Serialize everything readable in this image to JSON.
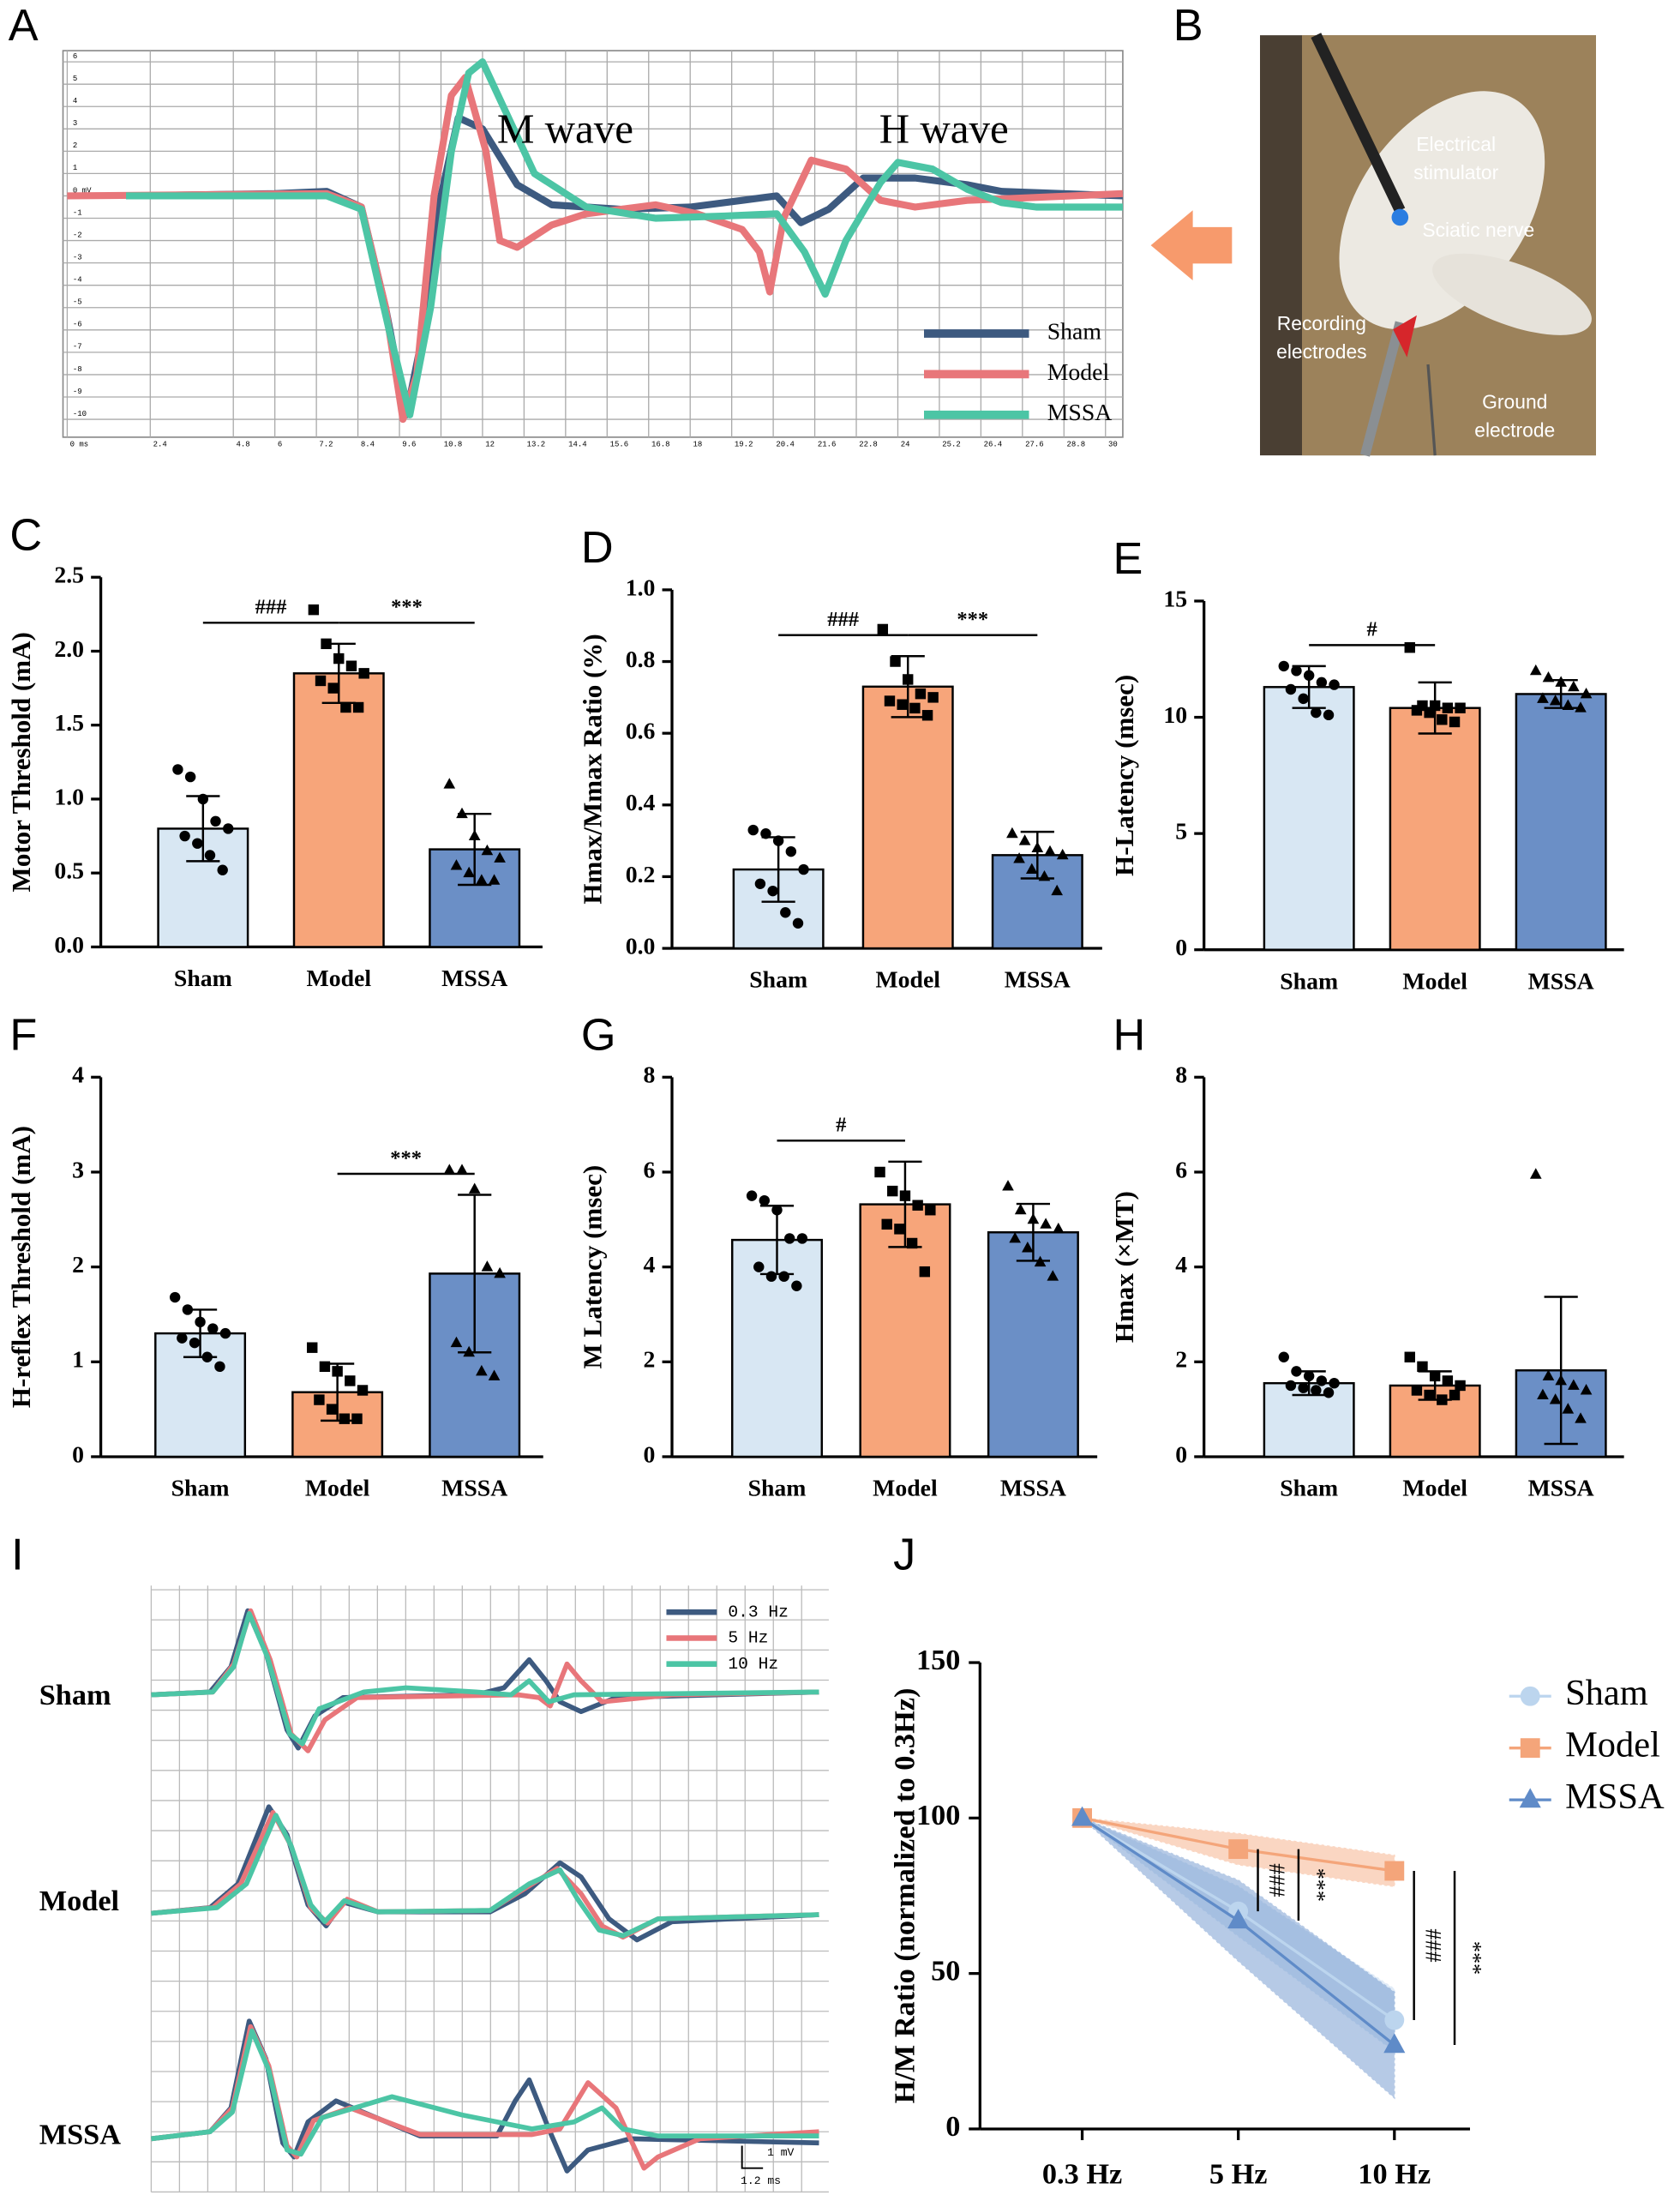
{
  "chart_data": [
    {
      "type": "line",
      "label": "A",
      "xlim": [
        0,
        30.5
      ],
      "ylim": [
        -10.8,
        6.5
      ],
      "grid": true,
      "legend": "lower right",
      "xticks": [
        {
          "value": 0,
          "label": "0 ms"
        },
        2.4,
        4.8,
        6,
        7.2,
        8.4,
        9.6,
        10.8,
        12,
        13.2,
        14.4,
        15.6,
        16.8,
        18,
        19.2,
        20.4,
        21.6,
        22.8,
        24,
        25.2,
        26.4,
        27.6,
        28.8,
        30
      ],
      "yticks": [
        6,
        5,
        4,
        3,
        2,
        1,
        {
          "value": 0,
          "label": "0 mV"
        },
        -1,
        -2,
        -3,
        -4,
        -5,
        -6,
        -7,
        -8,
        -9,
        -10
      ],
      "annotations": [
        "M wave",
        "H wave"
      ],
      "series": [
        {
          "name": "Sham",
          "color": "#3d5a80",
          "x": [
            1.7,
            6,
            7.5,
            8.5,
            9.2,
            9.8,
            10.3,
            10.8,
            11.3,
            12,
            13,
            14,
            16,
            18,
            19.5,
            20.5,
            21.2,
            22,
            23,
            24.5,
            26,
            27,
            30.5
          ],
          "values": [
            0,
            0.1,
            0.2,
            -0.5,
            -5,
            -9.8,
            -6,
            0,
            3.5,
            3,
            0.5,
            -0.4,
            -0.6,
            -0.5,
            -0.2,
            0,
            -1.2,
            -0.6,
            0.8,
            0.8,
            0.5,
            0.2,
            0
          ]
        },
        {
          "name": "Model",
          "color": "#e8767a",
          "x": [
            0,
            7.5,
            8.5,
            9.2,
            9.7,
            10.1,
            10.6,
            11.1,
            11.5,
            12.1,
            12.5,
            13,
            14,
            15,
            17,
            18.2,
            19.5,
            20,
            20.3,
            20.7,
            21.5,
            22.5,
            23.5,
            24.5,
            26,
            30.5
          ],
          "values": [
            0,
            0.1,
            -0.5,
            -5,
            -10,
            -8,
            0,
            4.5,
            5.3,
            2,
            -2,
            -2.3,
            -1.3,
            -0.8,
            -0.4,
            -0.8,
            -1.5,
            -2.5,
            -4.3,
            -1,
            1.6,
            1.2,
            -0.2,
            -0.5,
            -0.2,
            0.1
          ]
        },
        {
          "name": "MSSA",
          "color": "#4cc5a5",
          "x": [
            1.7,
            7.5,
            8.5,
            9.3,
            9.9,
            10.5,
            11.1,
            11.6,
            12,
            12.6,
            13.5,
            15,
            17,
            19,
            20.5,
            21.3,
            21.9,
            22.5,
            23.5,
            24,
            25,
            26,
            27,
            28,
            30.5
          ],
          "values": [
            0,
            0,
            -0.6,
            -6,
            -9.8,
            -5,
            2,
            5.5,
            6,
            4,
            1,
            -0.5,
            -1,
            -0.9,
            -0.8,
            -2.5,
            -4.4,
            -2,
            0.6,
            1.5,
            1.2,
            0.3,
            -0.3,
            -0.5,
            -0.5
          ]
        }
      ]
    },
    {
      "type": "bar",
      "label": "C",
      "ylabel": "Motor Threshold (mA)",
      "categories": [
        "Sham",
        "Model",
        "MSSA"
      ],
      "colors": [
        "#d8e7f3",
        "#f7a57a",
        "#6b8fc6"
      ],
      "markers": [
        "circle",
        "square",
        "triangle"
      ],
      "values": [
        0.8,
        1.85,
        0.66
      ],
      "errors": [
        0.22,
        0.2,
        0.24
      ],
      "points": [
        [
          1.2,
          1.15,
          1.0,
          0.85,
          0.8,
          0.75,
          0.7,
          0.62,
          0.52
        ],
        [
          2.28,
          2.05,
          1.95,
          1.9,
          1.85,
          1.8,
          1.75,
          1.62,
          1.62
        ],
        [
          1.1,
          0.9,
          0.75,
          0.65,
          0.6,
          0.55,
          0.5,
          0.45,
          0.45
        ]
      ],
      "ylim": [
        0,
        2.5
      ],
      "yticks": [
        {
          "value": 0,
          "label": "0.0"
        },
        0.5,
        {
          "value": 1,
          "label": "1.0"
        },
        1.5,
        {
          "value": 2,
          "label": "2.0"
        },
        2.5
      ],
      "significance": [
        {
          "text": "###",
          "categories": [
            "Sham",
            "Model"
          ]
        },
        {
          "text": "***",
          "categories": [
            "Model",
            "MSSA"
          ]
        }
      ]
    },
    {
      "type": "bar",
      "label": "D",
      "ylabel": "Hmax/Mmax Ratio (%)",
      "categories": [
        "Sham",
        "Model",
        "MSSA"
      ],
      "colors": [
        "#d8e7f3",
        "#f7a57a",
        "#6b8fc6"
      ],
      "markers": [
        "circle",
        "square",
        "triangle"
      ],
      "values": [
        0.22,
        0.73,
        0.26
      ],
      "errors": [
        0.09,
        0.085,
        0.065
      ],
      "points": [
        [
          0.33,
          0.32,
          0.3,
          0.27,
          0.22,
          0.18,
          0.16,
          0.1,
          0.07
        ],
        [
          0.89,
          0.8,
          0.75,
          0.71,
          0.7,
          0.69,
          0.68,
          0.67,
          0.65
        ],
        [
          0.32,
          0.3,
          0.28,
          0.27,
          0.26,
          0.25,
          0.22,
          0.2,
          0.16
        ]
      ],
      "ylim": [
        0,
        1
      ],
      "yticks": [
        {
          "value": 0,
          "label": "0.0"
        },
        0.2,
        0.4,
        0.6,
        0.8,
        {
          "value": 1,
          "label": "1.0"
        }
      ],
      "significance": [
        {
          "text": "###",
          "categories": [
            "Sham",
            "Model"
          ]
        },
        {
          "text": "***",
          "categories": [
            "Model",
            "MSSA"
          ]
        }
      ]
    },
    {
      "type": "bar",
      "label": "E",
      "ylabel": "H-Latency (msec)",
      "categories": [
        "Sham",
        "Model",
        "MSSA"
      ],
      "colors": [
        "#d8e7f3",
        "#f7a57a",
        "#6b8fc6"
      ],
      "markers": [
        "circle",
        "square",
        "triangle"
      ],
      "values": [
        11.3,
        10.4,
        11.0
      ],
      "errors": [
        0.9,
        1.1,
        0.6
      ],
      "points": [
        [
          12.2,
          12.0,
          11.8,
          11.5,
          11.4,
          11.2,
          10.8,
          10.2,
          10.1
        ],
        [
          13.0,
          10.5,
          10.5,
          10.4,
          10.4,
          10.3,
          10.2,
          9.9,
          9.8
        ],
        [
          12.0,
          11.7,
          11.5,
          11.3,
          11.0,
          10.8,
          10.7,
          10.5,
          10.4
        ]
      ],
      "ylim": [
        0,
        15
      ],
      "yticks": [
        0,
        5,
        10,
        15
      ],
      "significance": [
        {
          "text": "#",
          "categories": [
            "Sham",
            "Model"
          ]
        }
      ]
    },
    {
      "type": "bar",
      "label": "F",
      "ylabel": "H-reflex Threshold (mA)",
      "categories": [
        "Sham",
        "Model",
        "MSSA"
      ],
      "colors": [
        "#d8e7f3",
        "#f7a57a",
        "#6b8fc6"
      ],
      "markers": [
        "circle",
        "square",
        "triangle"
      ],
      "values": [
        1.3,
        0.68,
        1.93
      ],
      "errors": [
        0.25,
        0.3,
        0.83
      ],
      "points": [
        [
          1.68,
          1.55,
          1.42,
          1.35,
          1.3,
          1.25,
          1.2,
          1.05,
          0.95
        ],
        [
          1.15,
          0.95,
          0.9,
          0.8,
          0.7,
          0.6,
          0.5,
          0.4,
          0.4
        ],
        [
          3.02,
          3.02,
          2.82,
          2.0,
          1.93,
          1.2,
          1.1,
          0.9,
          0.85
        ]
      ],
      "ylim": [
        0,
        4
      ],
      "yticks": [
        0,
        1,
        2,
        3,
        4
      ],
      "significance": [
        {
          "text": "***",
          "categories": [
            "Model",
            "MSSA"
          ]
        }
      ]
    },
    {
      "type": "bar",
      "label": "G",
      "ylabel": "M Latency (msec)",
      "categories": [
        "Sham",
        "Model",
        "MSSA"
      ],
      "colors": [
        "#d8e7f3",
        "#f7a57a",
        "#6b8fc6"
      ],
      "markers": [
        "circle",
        "square",
        "triangle"
      ],
      "values": [
        4.57,
        5.32,
        4.73
      ],
      "errors": [
        0.72,
        0.9,
        0.6
      ],
      "points": [
        [
          5.5,
          5.4,
          5.2,
          4.6,
          4.6,
          4.0,
          3.8,
          3.8,
          3.6
        ],
        [
          6.0,
          5.6,
          5.5,
          5.3,
          5.2,
          4.9,
          4.8,
          4.5,
          3.9
        ],
        [
          5.7,
          5.2,
          5.0,
          4.9,
          4.8,
          4.6,
          4.4,
          4.1,
          3.8
        ]
      ],
      "ylim": [
        0,
        8
      ],
      "yticks": [
        0,
        2,
        4,
        6,
        8
      ],
      "significance": [
        {
          "text": "#",
          "categories": [
            "Sham",
            "Model"
          ]
        }
      ]
    },
    {
      "type": "bar",
      "label": "H",
      "ylabel": "Hmax (×MT)",
      "categories": [
        "Sham",
        "Model",
        "MSSA"
      ],
      "colors": [
        "#d8e7f3",
        "#f7a57a",
        "#6b8fc6"
      ],
      "markers": [
        "circle",
        "square",
        "triangle"
      ],
      "values": [
        1.55,
        1.5,
        1.82
      ],
      "errors": [
        0.25,
        0.3,
        1.55
      ],
      "points": [
        [
          2.1,
          1.8,
          1.7,
          1.6,
          1.55,
          1.5,
          1.45,
          1.4,
          1.35
        ],
        [
          2.1,
          1.9,
          1.7,
          1.6,
          1.5,
          1.4,
          1.3,
          1.2,
          1.3
        ],
        [
          5.95,
          1.7,
          1.6,
          1.5,
          1.4,
          1.3,
          1.2,
          1.0,
          0.8
        ]
      ],
      "ylim": [
        0,
        8
      ],
      "yticks": [
        0,
        2,
        4,
        6,
        8
      ],
      "significance": []
    },
    {
      "type": "line",
      "label": "J",
      "ylabel": "H/M Ratio (normalized to 0.3Hz)",
      "categories": [
        "0.3 Hz",
        "5 Hz",
        "10 Hz"
      ],
      "ylim": [
        0,
        150
      ],
      "yticks": [
        0,
        50,
        100,
        150
      ],
      "legend": "upper right",
      "series": [
        {
          "name": "Sham",
          "color": "#bcd5ee",
          "marker": "circle",
          "values": [
            100,
            70,
            35
          ],
          "errors": [
            0,
            8,
            10
          ]
        },
        {
          "name": "Model",
          "color": "#f4a57a",
          "marker": "square",
          "values": [
            100,
            90,
            83
          ],
          "errors": [
            0,
            5,
            5
          ]
        },
        {
          "name": "MSSA",
          "color": "#5f8bc8",
          "marker": "triangle",
          "values": [
            100,
            67,
            27
          ],
          "errors": [
            0,
            13,
            17
          ]
        }
      ],
      "significance": [
        {
          "text": "###",
          "category": "5 Hz",
          "series": [
            "Model",
            "Sham"
          ]
        },
        {
          "text": "***",
          "category": "5 Hz",
          "series": [
            "Model",
            "MSSA"
          ]
        },
        {
          "text": "###",
          "category": "10 Hz",
          "series": [
            "Model",
            "Sham"
          ]
        },
        {
          "text": "***",
          "category": "10 Hz",
          "series": [
            "Model",
            "MSSA"
          ]
        }
      ]
    }
  ],
  "photo": {
    "label": "B",
    "annotations": [
      [
        "Electrical",
        "stimulator"
      ],
      [
        "Sciatic nerve"
      ],
      [
        "Recording",
        "electrodes"
      ],
      [
        "Ground",
        "electrode"
      ]
    ]
  },
  "traces": {
    "label": "I",
    "rows": [
      "Sham",
      "Model",
      "MSSA"
    ],
    "legend": [
      "0.3 Hz",
      "5 Hz",
      "10 Hz"
    ],
    "scale": [
      "1 mV",
      "1.2 ms"
    ]
  }
}
